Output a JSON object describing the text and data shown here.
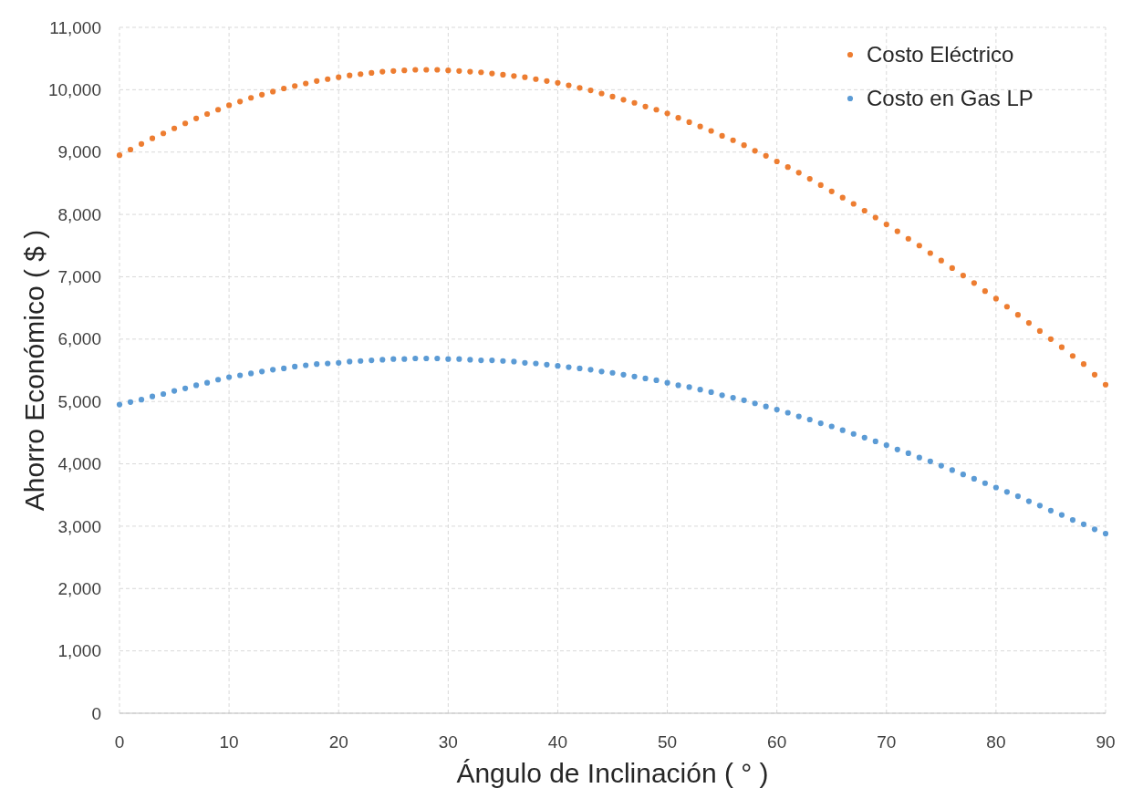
{
  "chart_data": {
    "type": "scatter",
    "xlabel": "Ángulo de Inclinación ( ° )",
    "ylabel": "Ahorro Económico ( $ )",
    "x": [
      0,
      1,
      2,
      3,
      4,
      5,
      6,
      7,
      8,
      9,
      10,
      11,
      12,
      13,
      14,
      15,
      16,
      17,
      18,
      19,
      20,
      21,
      22,
      23,
      24,
      25,
      26,
      27,
      28,
      29,
      30,
      31,
      32,
      33,
      34,
      35,
      36,
      37,
      38,
      39,
      40,
      41,
      42,
      43,
      44,
      45,
      46,
      47,
      48,
      49,
      50,
      51,
      52,
      53,
      54,
      55,
      56,
      57,
      58,
      59,
      60,
      61,
      62,
      63,
      64,
      65,
      66,
      67,
      68,
      69,
      70,
      71,
      72,
      73,
      74,
      75,
      76,
      77,
      78,
      79,
      80,
      81,
      82,
      83,
      84,
      85,
      86,
      87,
      88,
      89,
      90
    ],
    "series": [
      {
        "name": "Costo Eléctrico",
        "color": "#ed7d31",
        "values": [
          8950,
          9040,
          9130,
          9220,
          9300,
          9380,
          9460,
          9540,
          9610,
          9680,
          9750,
          9810,
          9870,
          9920,
          9970,
          10020,
          10060,
          10100,
          10140,
          10170,
          10200,
          10230,
          10250,
          10270,
          10290,
          10300,
          10310,
          10320,
          10320,
          10320,
          10310,
          10300,
          10290,
          10280,
          10260,
          10240,
          10220,
          10200,
          10170,
          10140,
          10110,
          10070,
          10030,
          9990,
          9940,
          9890,
          9840,
          9790,
          9730,
          9680,
          9620,
          9550,
          9480,
          9410,
          9340,
          9260,
          9190,
          9110,
          9020,
          8940,
          8850,
          8760,
          8670,
          8570,
          8470,
          8370,
          8270,
          8170,
          8060,
          7950,
          7840,
          7730,
          7610,
          7500,
          7380,
          7260,
          7140,
          7020,
          6900,
          6770,
          6650,
          6520,
          6390,
          6260,
          6130,
          6000,
          5870,
          5730,
          5600,
          5430,
          5270
        ]
      },
      {
        "name": "Costo en Gas LP",
        "color": "#5b9bd5",
        "values": [
          4950,
          4990,
          5030,
          5080,
          5120,
          5170,
          5210,
          5260,
          5300,
          5350,
          5390,
          5420,
          5450,
          5480,
          5510,
          5530,
          5560,
          5580,
          5600,
          5610,
          5620,
          5640,
          5650,
          5660,
          5670,
          5680,
          5680,
          5690,
          5690,
          5690,
          5680,
          5680,
          5670,
          5660,
          5660,
          5650,
          5640,
          5620,
          5610,
          5590,
          5570,
          5550,
          5530,
          5510,
          5480,
          5460,
          5430,
          5400,
          5370,
          5340,
          5300,
          5260,
          5230,
          5190,
          5150,
          5100,
          5060,
          5020,
          4970,
          4920,
          4870,
          4820,
          4760,
          4710,
          4650,
          4600,
          4540,
          4480,
          4420,
          4360,
          4300,
          4230,
          4170,
          4100,
          4040,
          3970,
          3900,
          3830,
          3760,
          3690,
          3620,
          3550,
          3480,
          3400,
          3330,
          3250,
          3180,
          3100,
          3030,
          2950,
          2880
        ]
      }
    ],
    "xlim": [
      0,
      90
    ],
    "xticks": [
      0,
      10,
      20,
      30,
      40,
      50,
      60,
      70,
      80,
      90
    ],
    "ylim": [
      0,
      11000
    ],
    "yticks": [
      0,
      {
        "value": 1000,
        "label": "1,000"
      },
      {
        "value": 2000,
        "label": "2,000"
      },
      {
        "value": 3000,
        "label": "3,000"
      },
      {
        "value": 4000,
        "label": "4,000"
      },
      {
        "value": 5000,
        "label": "5,000"
      },
      {
        "value": 6000,
        "label": "6,000"
      },
      {
        "value": 7000,
        "label": "7,000"
      },
      {
        "value": 8000,
        "label": "8,000"
      },
      {
        "value": 9000,
        "label": "9,000"
      },
      {
        "value": 10000,
        "label": "10,000"
      },
      {
        "value": 11000,
        "label": "11,000"
      }
    ],
    "grid": true,
    "legend": "top right",
    "marker": "circle"
  }
}
